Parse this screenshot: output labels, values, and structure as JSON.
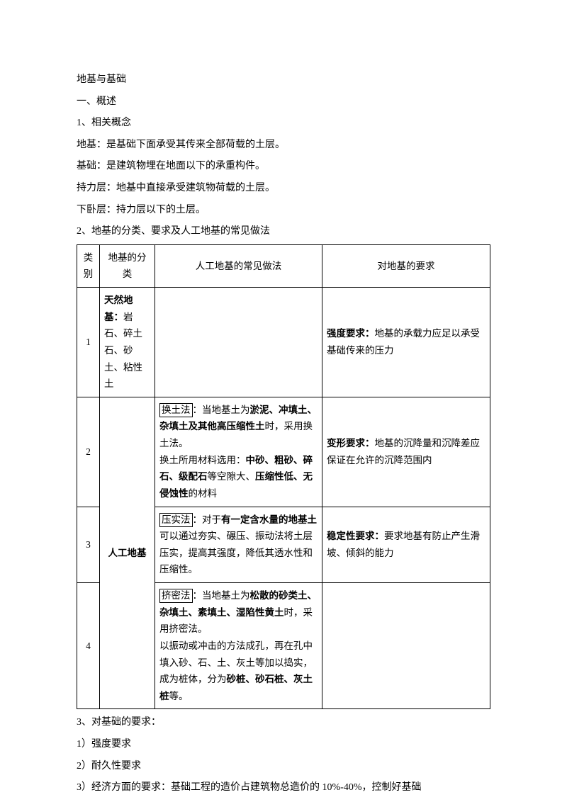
{
  "title": "地基与基础",
  "s1_heading": "一、概述",
  "s1_1": "1、相关概念",
  "def_diji": "地基：是基础下面承受其传来全部荷载的土层。",
  "def_jichu": "基础：是建筑物埋在地面以下的承重构件。",
  "def_chili": "持力层：地基中直接承受建筑物荷载的土层。",
  "def_xiawo": "下卧层：持力层以下的土层。",
  "s1_2": "2、地基的分类、要求及人工地基的常见做法",
  "table": {
    "header": {
      "c1": "类别",
      "c2": "地基的分类",
      "c3": "人工地基的常见做法",
      "c4": "对地基的要求"
    },
    "rows": {
      "r1": {
        "idx": "1",
        "cat_bold": "天然地基：",
        "cat_rest": "岩石、碎土石、砂土、粘性土",
        "method": "",
        "req_bold": "强度要求：",
        "req_rest": "地基的承载力应足以承受基础传来的压力"
      },
      "r2": {
        "idx": "2",
        "cat": "人工地基",
        "m_box": "换土法",
        "m_a": "：当地基土为",
        "m_b": "淤泥、冲填土、杂填土及其他高压缩性土",
        "m_c": "时，采用换土法。",
        "m_d": "换土所用材料选用：",
        "m_e": "中砂、粗砂、碎石、级配石",
        "m_f": "等空隙大、",
        "m_g": "压缩性低、无侵蚀性",
        "m_h": "的材料",
        "req_bold": "变形要求：",
        "req_rest": "地基的沉降量和沉降差应保证在允许的沉降范围内"
      },
      "r3": {
        "idx": "3",
        "m_box": "压实法",
        "m_a": "：对于",
        "m_b": "有一定含水量的地基土",
        "m_c": "可以通过夯实、碾压、振动法将土层压实，提高其强度，降低其透水性和压缩性。",
        "req_bold": "稳定性要求：",
        "req_rest": "要求地基有防止产生滑坡、倾斜的能力"
      },
      "r4": {
        "idx": "4",
        "m_box": "挤密法",
        "m_a": "：当地基土为",
        "m_b": "松散的砂类土、杂填土、素填土、湿陷性黄土",
        "m_c": "时，采用挤密法。",
        "m_d": "以振动或冲击的方法成孔，再在孔中填入砂、石、土、灰土等加以捣实，成为桩体，分为",
        "m_e": "砂桩、砂石桩、灰土桩",
        "m_f": "等。"
      }
    }
  },
  "s1_3": "3、对基础的要求：",
  "req1": "1）强度要求",
  "req2": "2）耐久性要求",
  "req3": "3）经济方面的要求：基础工程的造价占建筑物总造价的 10%-40%，控制好基础"
}
